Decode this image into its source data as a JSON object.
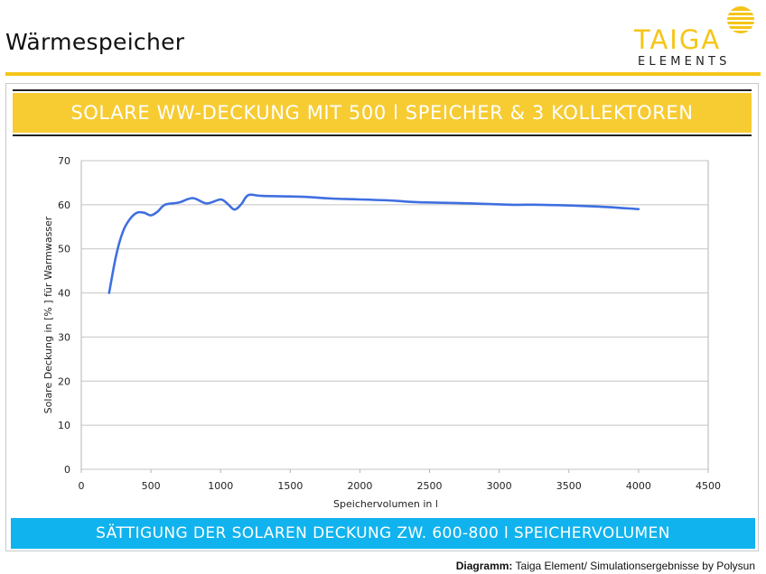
{
  "page": {
    "title": "Wärmespeicher",
    "logo_word": "TAIGA",
    "logo_sub": "ELEMENTS",
    "accent_yellow": "#f7cb32",
    "accent_blue": "#10b3ee",
    "line_color": "#3f6fe0"
  },
  "banner_top": "SOLARE WW-DECKUNG MIT 500 l SPEICHER & 3 KOLLEKTOREN",
  "banner_bottom": "SÄTTIGUNG DER SOLAREN DECKUNG ZW. 600-800 l SPEICHERVOLUMEN",
  "footer": {
    "label": "Diagramm:",
    "text": " Taiga Element/ Simulationsergebnisse by Polysun"
  },
  "chart_data": {
    "type": "line",
    "title": "",
    "xlabel": "Speichervolumen in l",
    "ylabel": "Solare Deckung in [% ] für Warmwasser",
    "xlim": [
      0,
      4500
    ],
    "ylim": [
      0,
      70
    ],
    "xticks": [
      0,
      500,
      1000,
      1500,
      2000,
      2500,
      3000,
      3500,
      4000,
      4500
    ],
    "yticks": [
      0,
      10,
      20,
      30,
      40,
      50,
      60,
      70
    ],
    "grid": true,
    "legend": "none",
    "series": [
      {
        "x": [
          200,
          250,
          300,
          350,
          400,
          450,
          500,
          550,
          600,
          700,
          800,
          900,
          1000,
          1050,
          1100,
          1150,
          1200,
          1300,
          1600,
          1800,
          2200,
          2400,
          2800,
          3100,
          3300,
          3700,
          4000
        ],
        "y": [
          40,
          48.5,
          54,
          56.8,
          58.2,
          58.2,
          57.6,
          58.5,
          60,
          60.5,
          61.5,
          60.3,
          61.2,
          60.2,
          58.9,
          60.2,
          62.2,
          62,
          61.8,
          61.4,
          61,
          60.6,
          60.3,
          60,
          60,
          59.6,
          59
        ]
      }
    ]
  }
}
